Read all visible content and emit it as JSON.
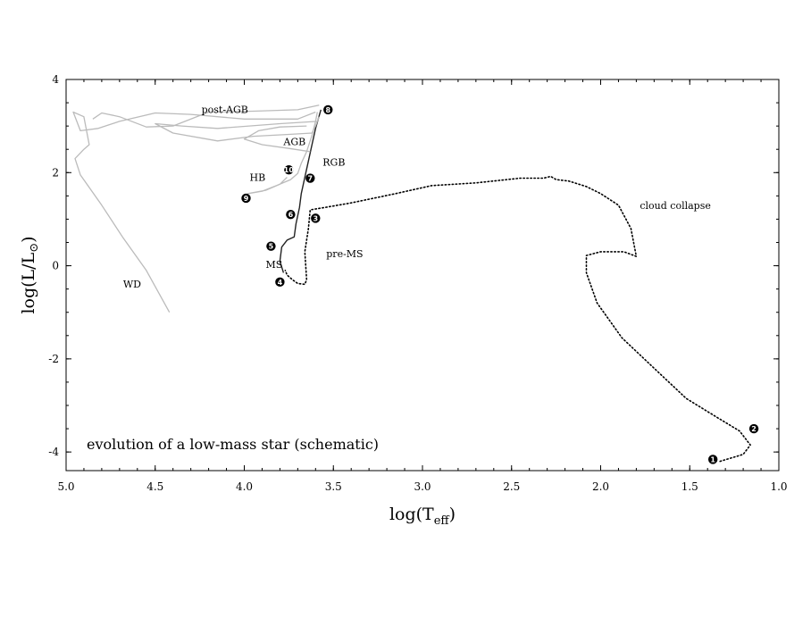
{
  "chart_data": {
    "type": "line",
    "title": "",
    "annotation": "evolution of a low-mass star (schematic)",
    "xlabel": "log(T",
    "xlabel_sub": "eff",
    "xlabel_close": ")",
    "ylabel": "log(L/L",
    "ylabel_sub": "⊙",
    "ylabel_close": ")",
    "xlim": [
      5.0,
      1.0
    ],
    "x_reversed": true,
    "ylim": [
      -4.4,
      4.0
    ],
    "grid": false,
    "x_ticks": [
      "5.0",
      "4.5",
      "4.0",
      "3.5",
      "3.0",
      "2.5",
      "2.0",
      "1.5",
      "1.0"
    ],
    "y_ticks": [
      "4",
      "2",
      "0",
      "-2",
      "-4"
    ],
    "colors": {
      "pre_ms": "#000000",
      "main": "#222222",
      "late": "#bbbbbb",
      "hb": "#777777"
    },
    "series": [
      {
        "style": "dotted",
        "points": [
          [
            1.33,
            -4.2
          ],
          [
            1.2,
            -4.05
          ],
          [
            1.16,
            -3.85
          ],
          [
            1.22,
            -3.55
          ],
          [
            1.35,
            -3.25
          ],
          [
            1.52,
            -2.85
          ],
          [
            1.7,
            -2.2
          ],
          [
            1.88,
            -1.55
          ],
          [
            2.02,
            -0.8
          ],
          [
            2.08,
            -0.15
          ],
          [
            2.08,
            0.22
          ],
          [
            2.0,
            0.3
          ],
          [
            1.87,
            0.3
          ],
          [
            1.8,
            0.2
          ],
          [
            1.83,
            0.8
          ],
          [
            1.9,
            1.3
          ],
          [
            2.0,
            1.55
          ],
          [
            2.08,
            1.7
          ],
          [
            2.18,
            1.82
          ],
          [
            2.25,
            1.85
          ],
          [
            2.28,
            1.92
          ],
          [
            2.32,
            1.88
          ],
          [
            2.45,
            1.88
          ],
          [
            2.7,
            1.78
          ],
          [
            2.95,
            1.72
          ],
          [
            3.15,
            1.55
          ],
          [
            3.4,
            1.35
          ],
          [
            3.55,
            1.25
          ],
          [
            3.63,
            1.2
          ],
          [
            3.64,
            0.8
          ],
          [
            3.66,
            0.3
          ],
          [
            3.65,
            -0.3
          ],
          [
            3.66,
            -0.4
          ],
          [
            3.7,
            -0.38
          ],
          [
            3.73,
            -0.3
          ],
          [
            3.76,
            -0.2
          ],
          [
            3.77,
            -0.1
          ]
        ]
      },
      {
        "style": "solid",
        "points": [
          [
            3.78,
            -0.15
          ],
          [
            3.8,
            0.1
          ],
          [
            3.79,
            0.4
          ],
          [
            3.76,
            0.55
          ],
          [
            3.72,
            0.62
          ],
          [
            3.71,
            0.9
          ],
          [
            3.69,
            1.25
          ],
          [
            3.68,
            1.55
          ],
          [
            3.66,
            1.9
          ],
          [
            3.64,
            2.25
          ],
          [
            3.62,
            2.6
          ],
          [
            3.6,
            2.95
          ],
          [
            3.57,
            3.35
          ]
        ]
      },
      {
        "style": "grey",
        "points": [
          [
            3.76,
            1.9
          ],
          [
            3.8,
            1.75
          ],
          [
            3.88,
            1.62
          ],
          [
            3.98,
            1.55
          ],
          [
            3.9,
            1.6
          ],
          [
            3.82,
            1.72
          ],
          [
            3.74,
            1.85
          ],
          [
            3.7,
            1.98
          ],
          [
            3.68,
            2.2
          ],
          [
            3.65,
            2.45
          ],
          [
            3.62,
            2.8
          ],
          [
            3.6,
            3.1
          ],
          [
            3.59,
            3.3
          ]
        ]
      },
      {
        "style": "grey",
        "points": [
          [
            3.6,
            3.3
          ],
          [
            3.7,
            3.15
          ],
          [
            4.0,
            3.15
          ],
          [
            4.3,
            3.25
          ],
          [
            4.5,
            3.28
          ],
          [
            4.7,
            3.1
          ],
          [
            4.82,
            2.95
          ],
          [
            4.92,
            2.9
          ],
          [
            4.96,
            3.3
          ],
          [
            4.9,
            3.2
          ],
          [
            4.87,
            2.6
          ],
          [
            4.9,
            2.5
          ],
          [
            4.95,
            2.3
          ],
          [
            4.92,
            1.95
          ],
          [
            4.8,
            1.3
          ],
          [
            4.68,
            0.6
          ],
          [
            4.55,
            -0.1
          ],
          [
            4.42,
            -1.0
          ]
        ]
      },
      {
        "style": "grey",
        "points": [
          [
            3.59,
            3.1
          ],
          [
            3.8,
            3.05
          ],
          [
            4.15,
            2.95
          ],
          [
            4.35,
            3.0
          ],
          [
            4.5,
            3.05
          ],
          [
            4.4,
            2.85
          ],
          [
            4.15,
            2.68
          ],
          [
            3.95,
            2.78
          ],
          [
            3.75,
            2.82
          ],
          [
            3.62,
            2.85
          ],
          [
            3.6,
            3.0
          ],
          [
            3.58,
            3.2
          ]
        ]
      },
      {
        "style": "grey",
        "points": [
          [
            3.63,
            2.45
          ],
          [
            3.75,
            2.52
          ],
          [
            3.9,
            2.6
          ],
          [
            4.0,
            2.72
          ],
          [
            3.92,
            2.9
          ],
          [
            3.8,
            2.98
          ],
          [
            3.65,
            3.0
          ]
        ]
      },
      {
        "style": "grey",
        "points": [
          [
            3.58,
            3.45
          ],
          [
            3.7,
            3.35
          ],
          [
            3.95,
            3.32
          ],
          [
            4.2,
            3.3
          ],
          [
            4.4,
            3.0
          ],
          [
            4.55,
            2.98
          ],
          [
            4.7,
            3.2
          ],
          [
            4.8,
            3.28
          ],
          [
            4.85,
            3.15
          ]
        ]
      }
    ],
    "region_labels": [
      {
        "text": "post-AGB",
        "x": 4.24,
        "y": 3.28
      },
      {
        "text": "AGB",
        "x": 3.78,
        "y": 2.59
      },
      {
        "text": "RGB",
        "x": 3.56,
        "y": 2.15
      },
      {
        "text": "HB",
        "x": 3.97,
        "y": 1.82
      },
      {
        "text": "cloud collapse",
        "x": 1.78,
        "y": 1.22
      },
      {
        "text": "pre-MS",
        "x": 3.54,
        "y": 0.18
      },
      {
        "text": "MS",
        "x": 3.88,
        "y": -0.05
      },
      {
        "text": "WD",
        "x": 4.68,
        "y": -0.47
      }
    ],
    "stage_points": [
      {
        "label": "1",
        "x": 1.37,
        "y": -4.16
      },
      {
        "label": "2",
        "x": 1.14,
        "y": -3.5
      },
      {
        "label": "3",
        "x": 3.6,
        "y": 1.02
      },
      {
        "label": "4",
        "x": 3.8,
        "y": -0.35
      },
      {
        "label": "5",
        "x": 3.85,
        "y": 0.42
      },
      {
        "label": "6",
        "x": 3.74,
        "y": 1.1
      },
      {
        "label": "7",
        "x": 3.63,
        "y": 1.88
      },
      {
        "label": "8",
        "x": 3.53,
        "y": 3.35
      },
      {
        "label": "9",
        "x": 3.99,
        "y": 1.45
      },
      {
        "label": "10",
        "x": 3.75,
        "y": 2.06
      }
    ]
  }
}
